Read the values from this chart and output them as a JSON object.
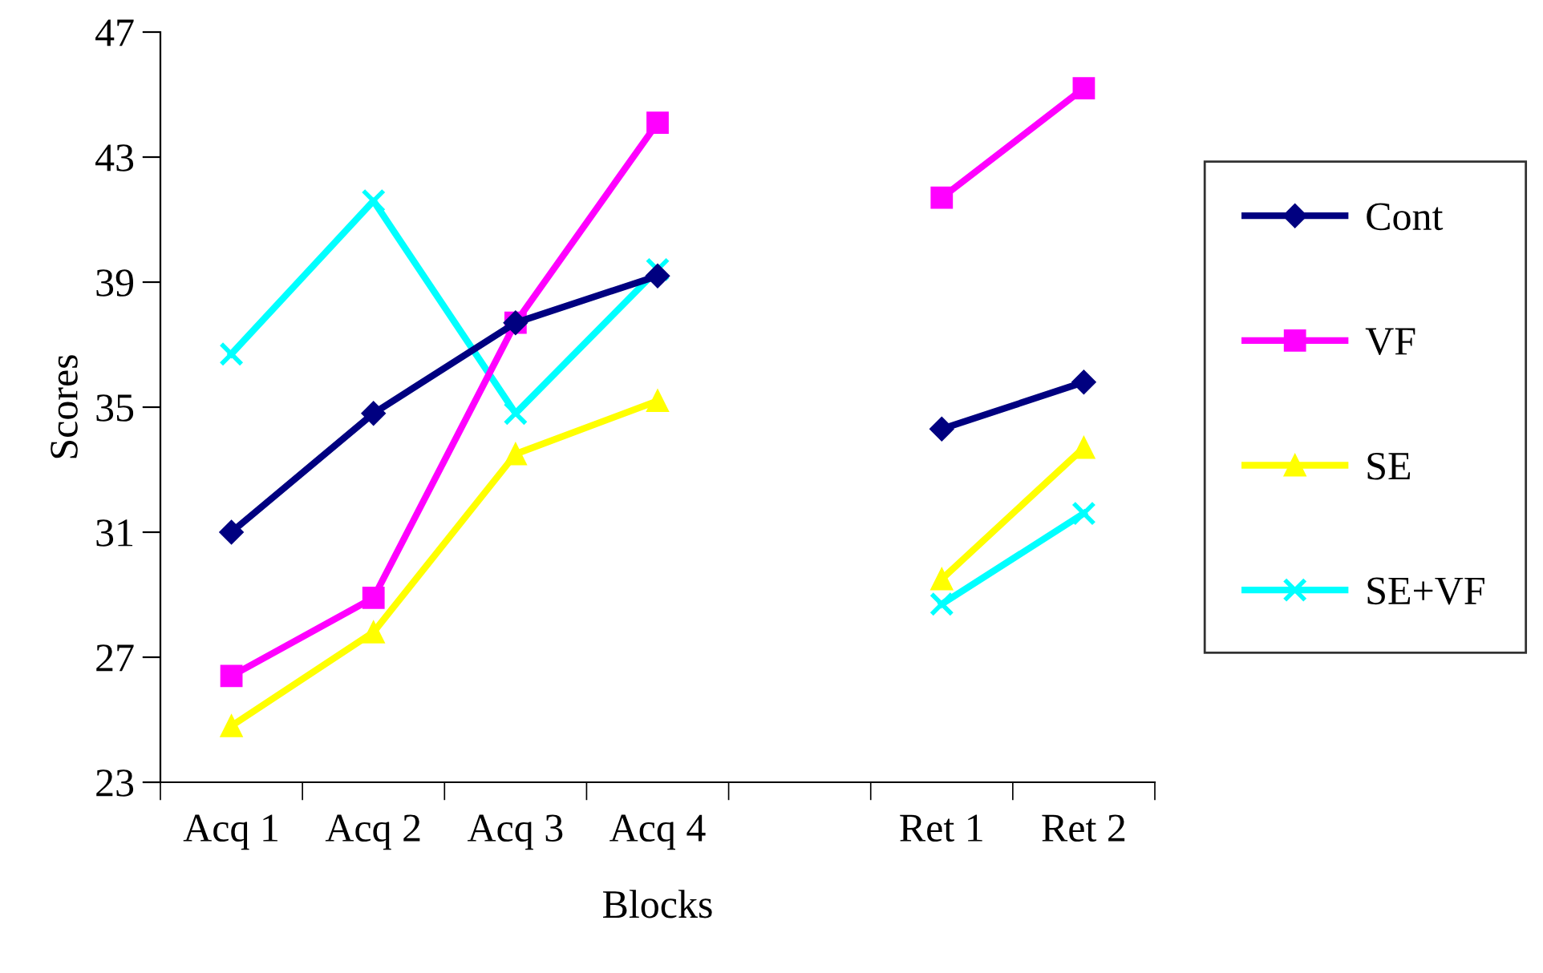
{
  "chart_data": {
    "type": "line",
    "xlabel": "Blocks",
    "ylabel": "Scores",
    "categories": [
      "Acq 1",
      "Acq 2",
      "Acq 3",
      "Acq 4",
      null,
      "Ret 1",
      "Ret 2"
    ],
    "ylim": [
      23,
      47
    ],
    "yticks": [
      23,
      27,
      31,
      35,
      39,
      43,
      47
    ],
    "grid": false,
    "legend": "right",
    "line_style": "solid",
    "series": [
      {
        "name": "Cont",
        "color": "#000080",
        "marker": "diamond",
        "values": [
          31.0,
          34.8,
          37.7,
          39.2,
          null,
          34.3,
          35.8
        ]
      },
      {
        "name": "VF",
        "color": "#ff00ff",
        "marker": "square",
        "values": [
          26.4,
          28.9,
          37.7,
          44.1,
          null,
          41.7,
          45.2
        ]
      },
      {
        "name": "SE",
        "color": "#ffff00",
        "marker": "triangle",
        "values": [
          24.8,
          27.8,
          33.5,
          35.2,
          null,
          29.5,
          33.7
        ]
      },
      {
        "name": "SE+VF",
        "color": "#00ffff",
        "marker": "cross",
        "values": [
          36.7,
          41.6,
          34.8,
          39.4,
          null,
          28.7,
          31.6
        ]
      }
    ]
  }
}
